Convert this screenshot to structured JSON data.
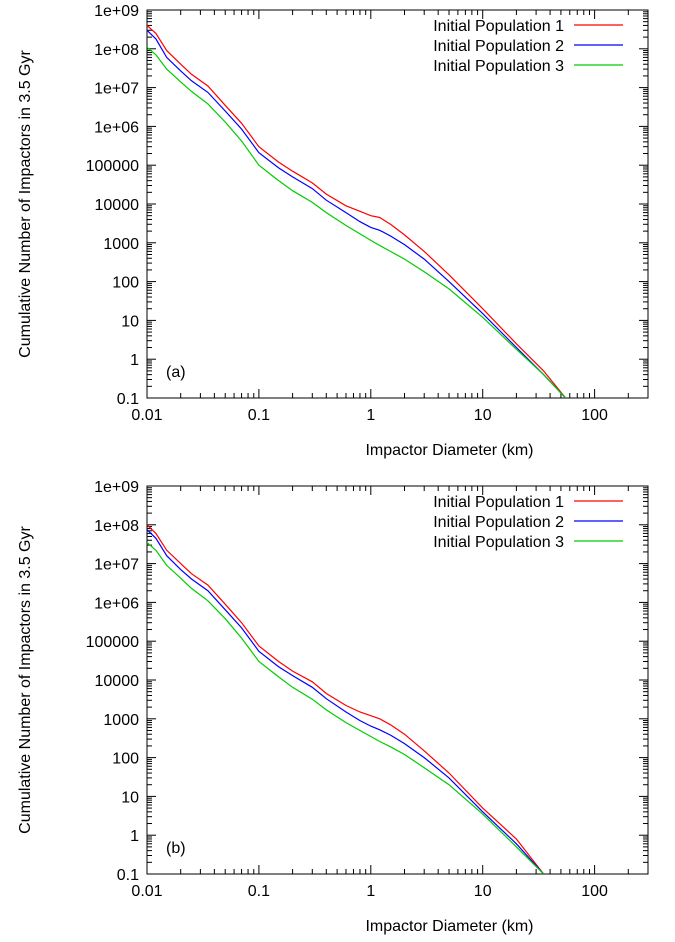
{
  "chart_data": [
    {
      "type": "line",
      "annotation": "(a)",
      "xlabel": "Impactor Diameter (km)",
      "ylabel": "Cumulative Number of Impactors in 3.5 Gyr",
      "xscale": "log",
      "yscale": "log",
      "xlim": [
        0.01,
        300
      ],
      "ylim": [
        0.1,
        1000000000
      ],
      "xticks": [
        0.01,
        0.1,
        1,
        10,
        100
      ],
      "xtick_labels": [
        "0.01",
        "0.1",
        "1",
        "10",
        "100"
      ],
      "yticks": [
        0.1,
        1,
        10,
        100,
        1000,
        10000,
        100000,
        1000000,
        10000000,
        100000000,
        1000000000
      ],
      "ytick_labels": [
        "0.1",
        "1",
        "10",
        "100",
        "1000",
        "10000",
        "100000",
        "1e+06",
        "1e+07",
        "1e+08",
        "1e+09"
      ],
      "grid": false,
      "legend_position": "top-right",
      "series": [
        {
          "name": "Initial Population 1",
          "color": "#ff0000",
          "x": [
            0.01,
            0.012,
            0.015,
            0.02,
            0.025,
            0.035,
            0.05,
            0.07,
            0.1,
            0.15,
            0.2,
            0.3,
            0.4,
            0.6,
            0.8,
            1.0,
            1.2,
            1.5,
            2.0,
            3.0,
            5.0,
            10,
            20,
            35,
            55
          ],
          "y": [
            400000000,
            250000000,
            90000000,
            40000000,
            22000000,
            11000000,
            3500000,
            1200000,
            300000,
            120000,
            70000,
            35000,
            18000,
            9000,
            6500,
            5000,
            4500,
            3000,
            1600,
            600,
            150,
            20,
            2.5,
            0.5,
            0.1
          ]
        },
        {
          "name": "Initial Population 2",
          "color": "#0000ff",
          "x": [
            0.01,
            0.012,
            0.015,
            0.02,
            0.025,
            0.035,
            0.05,
            0.07,
            0.1,
            0.15,
            0.2,
            0.3,
            0.4,
            0.6,
            0.8,
            1.0,
            1.2,
            1.5,
            2.0,
            3.0,
            5.0,
            10,
            20,
            35,
            55
          ],
          "y": [
            300000000,
            180000000,
            60000000,
            27000000,
            15000000,
            7500000,
            2500000,
            850000,
            210000,
            85000,
            50000,
            25000,
            12500,
            6000,
            3500,
            2500,
            2100,
            1500,
            900,
            380,
            100,
            15,
            2.0,
            0.4,
            0.1
          ]
        },
        {
          "name": "Initial Population 3",
          "color": "#00cc00",
          "x": [
            0.01,
            0.012,
            0.015,
            0.02,
            0.025,
            0.035,
            0.05,
            0.07,
            0.1,
            0.15,
            0.2,
            0.3,
            0.4,
            0.6,
            0.8,
            1.0,
            1.2,
            1.5,
            2.0,
            3.0,
            5.0,
            10,
            20,
            35,
            55
          ],
          "y": [
            110000000,
            70000000,
            30000000,
            14000000,
            8000000,
            3800000,
            1300000,
            420000,
            100000,
            40000,
            22000,
            11000,
            6000,
            2800,
            1700,
            1150,
            850,
            600,
            380,
            180,
            65,
            12,
            1.8,
            0.4,
            0.1
          ]
        }
      ]
    },
    {
      "type": "line",
      "annotation": "(b)",
      "xlabel": "Impactor Diameter (km)",
      "ylabel": "Cumulative Number of Impactors in 3.5 Gyr",
      "xscale": "log",
      "yscale": "log",
      "xlim": [
        0.01,
        300
      ],
      "ylim": [
        0.1,
        1000000000
      ],
      "xticks": [
        0.01,
        0.1,
        1,
        10,
        100
      ],
      "xtick_labels": [
        "0.01",
        "0.1",
        "1",
        "10",
        "100"
      ],
      "yticks": [
        0.1,
        1,
        10,
        100,
        1000,
        10000,
        100000,
        1000000,
        10000000,
        100000000,
        1000000000
      ],
      "ytick_labels": [
        "0.1",
        "1",
        "10",
        "100",
        "1000",
        "10000",
        "100000",
        "1e+06",
        "1e+07",
        "1e+08",
        "1e+09"
      ],
      "grid": false,
      "legend_position": "top-right",
      "series": [
        {
          "name": "Initial Population 1",
          "color": "#ff0000",
          "x": [
            0.01,
            0.012,
            0.015,
            0.02,
            0.025,
            0.035,
            0.05,
            0.07,
            0.1,
            0.15,
            0.2,
            0.3,
            0.4,
            0.6,
            0.8,
            1.0,
            1.2,
            1.5,
            2.0,
            3.0,
            5.0,
            10,
            20,
            35
          ],
          "y": [
            100000000,
            60000000,
            22000000,
            10000000,
            5500000,
            2800000,
            900000,
            300000,
            75000,
            30000,
            17000,
            9000,
            4500,
            2200,
            1500,
            1200,
            1000,
            700,
            400,
            150,
            40,
            5,
            0.8,
            0.1
          ]
        },
        {
          "name": "Initial Population 2",
          "color": "#0000ff",
          "x": [
            0.01,
            0.012,
            0.015,
            0.02,
            0.025,
            0.035,
            0.05,
            0.07,
            0.1,
            0.15,
            0.2,
            0.3,
            0.4,
            0.6,
            0.8,
            1.0,
            1.2,
            1.5,
            2.0,
            3.0,
            5.0,
            10,
            20,
            35
          ],
          "y": [
            75000000,
            45000000,
            16000000,
            7000000,
            4000000,
            2000000,
            650000,
            220000,
            55000,
            22000,
            13000,
            6500,
            3300,
            1500,
            900,
            650,
            520,
            380,
            230,
            100,
            30,
            4,
            0.6,
            0.1
          ]
        },
        {
          "name": "Initial Population 3",
          "color": "#00cc00",
          "x": [
            0.01,
            0.012,
            0.015,
            0.02,
            0.025,
            0.035,
            0.05,
            0.07,
            0.1,
            0.15,
            0.2,
            0.3,
            0.4,
            0.6,
            0.8,
            1.0,
            1.2,
            1.5,
            2.0,
            3.0,
            5.0,
            10,
            20,
            35
          ],
          "y": [
            35000000,
            22000000,
            9000000,
            4200000,
            2300000,
            1100000,
            380000,
            120000,
            30000,
            12000,
            6500,
            3200,
            1700,
            800,
            500,
            350,
            260,
            190,
            120,
            55,
            20,
            3.5,
            0.5,
            0.1
          ]
        }
      ]
    }
  ]
}
